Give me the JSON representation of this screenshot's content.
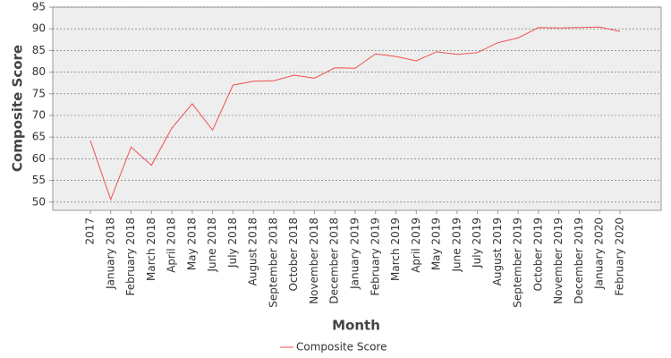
{
  "chart_data": {
    "type": "line",
    "x_label": "Month",
    "y_label": "Composite Score",
    "categories": [
      "2017",
      "January 2018",
      "February 2018",
      "March 2018",
      "April 2018",
      "May 2018",
      "June 2018",
      "July 2018",
      "August 2018",
      "September 2018",
      "October 2018",
      "November 2018",
      "December 2018",
      "January 2019",
      "February 2019",
      "March 2019",
      "April 2019",
      "May 2019",
      "June 2019",
      "July 2019",
      "August 2019",
      "September 2019",
      "October 2019",
      "November 2019",
      "December 2019",
      "January 2020",
      "February 2020"
    ],
    "series": [
      {
        "name": "Composite Score",
        "color": "#f05050",
        "values": [
          64.2,
          50.6,
          62.7,
          58.5,
          67.1,
          72.7,
          66.6,
          77.0,
          77.9,
          78.0,
          79.3,
          78.6,
          81.0,
          80.9,
          84.2,
          83.6,
          82.6,
          84.7,
          84.1,
          84.5,
          86.8,
          87.9,
          90.3,
          90.2,
          90.3,
          90.4,
          89.4
        ]
      }
    ],
    "ylim": [
      48.1,
      95
    ],
    "yticks": [
      50,
      55,
      60,
      65,
      70,
      75,
      80,
      85,
      90,
      95
    ],
    "grid": true,
    "legend": "bottom"
  }
}
